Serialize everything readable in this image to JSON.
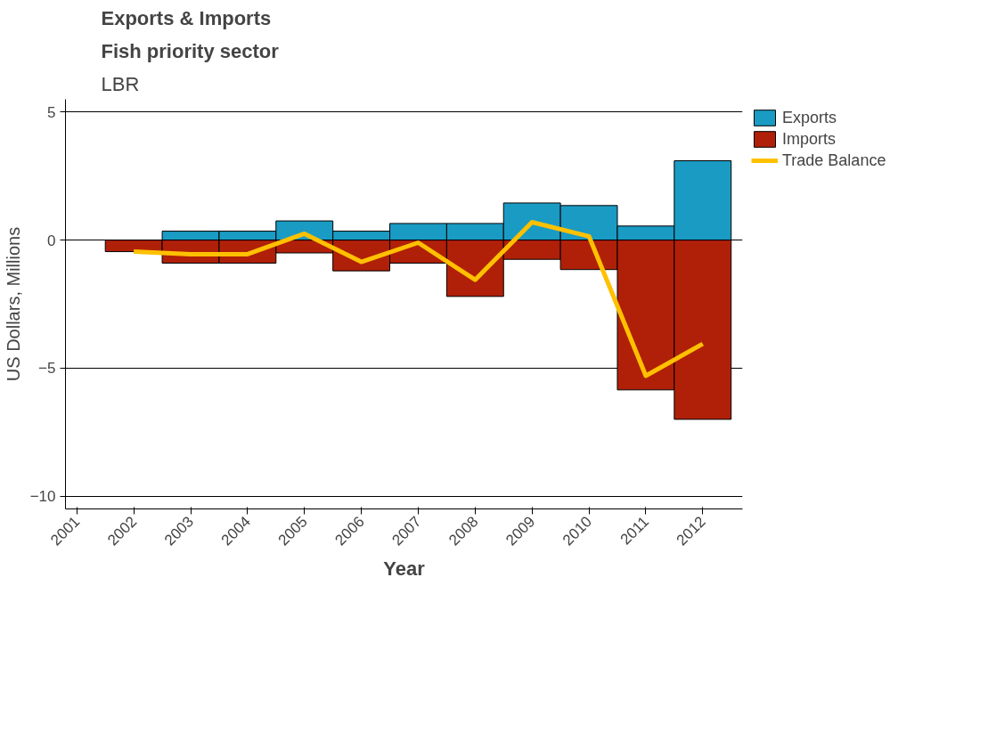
{
  "chart_data": {
    "type": "bar",
    "title": "Exports & Imports",
    "subtitle": "Fish priority sector",
    "annotations": [
      "LBR"
    ],
    "xlabel": "Year",
    "ylabel": "US Dollars, Millions",
    "x": [
      2002,
      2003,
      2004,
      2005,
      2006,
      2007,
      2008,
      2009,
      2010,
      2011,
      2012
    ],
    "series": [
      {
        "name": "Exports",
        "color": "#1a9bc4",
        "values": [
          null,
          0.35,
          0.35,
          0.75,
          0.35,
          0.65,
          0.65,
          1.45,
          1.35,
          0.55,
          3.1
        ]
      },
      {
        "name": "Imports",
        "color": "#b02008",
        "values": [
          -0.45,
          -0.9,
          -0.9,
          -0.5,
          -1.2,
          -0.9,
          -2.2,
          -0.75,
          -1.15,
          -5.85,
          -7.0
        ]
      },
      {
        "name": "Trade Balance",
        "type": "line",
        "color": "#ffc000",
        "values": [
          -0.45,
          -0.55,
          -0.55,
          0.25,
          -0.85,
          -0.1,
          -1.55,
          0.7,
          0.15,
          -5.3,
          -4.05
        ]
      }
    ],
    "xlim": [
      2000.8,
      2012.7
    ],
    "ylim": [
      -10.5,
      5.5
    ],
    "xticks": [
      2001,
      2002,
      2003,
      2004,
      2005,
      2006,
      2007,
      2008,
      2009,
      2010,
      2011,
      2012
    ],
    "yticks": [
      -10,
      -5,
      0,
      5
    ],
    "stacked": true,
    "grid": "y",
    "legend": "top right"
  }
}
